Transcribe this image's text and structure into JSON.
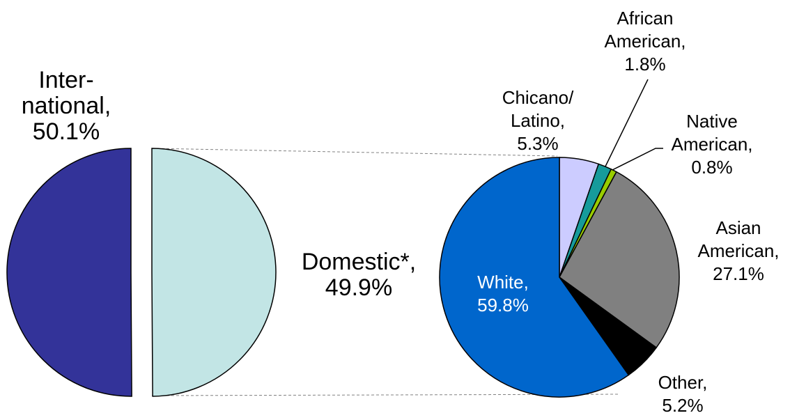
{
  "chart_data": [
    {
      "type": "pie",
      "categories": [
        "Inter-\nnational,",
        "Domestic*,"
      ],
      "values": [
        50.1,
        49.9
      ],
      "value_labels": [
        "50.1%",
        "49.9%"
      ],
      "colors": [
        "#333399",
        "#c2e5e5"
      ]
    },
    {
      "type": "pie",
      "categories": [
        "Chicano/\nLatino,",
        "African\nAmerican,",
        "Native\nAmerican,",
        "Asian\nAmerican,",
        "Other,",
        "White,"
      ],
      "values": [
        5.3,
        1.8,
        0.8,
        27.1,
        5.2,
        59.8
      ],
      "value_labels": [
        "5.3%",
        "1.8%",
        "0.8%",
        "27.1%",
        "5.2%",
        "59.8%"
      ],
      "colors": [
        "#ccccff",
        "#169b9b",
        "#99cc00",
        "#808080",
        "#000000",
        "#0066cc"
      ]
    }
  ]
}
